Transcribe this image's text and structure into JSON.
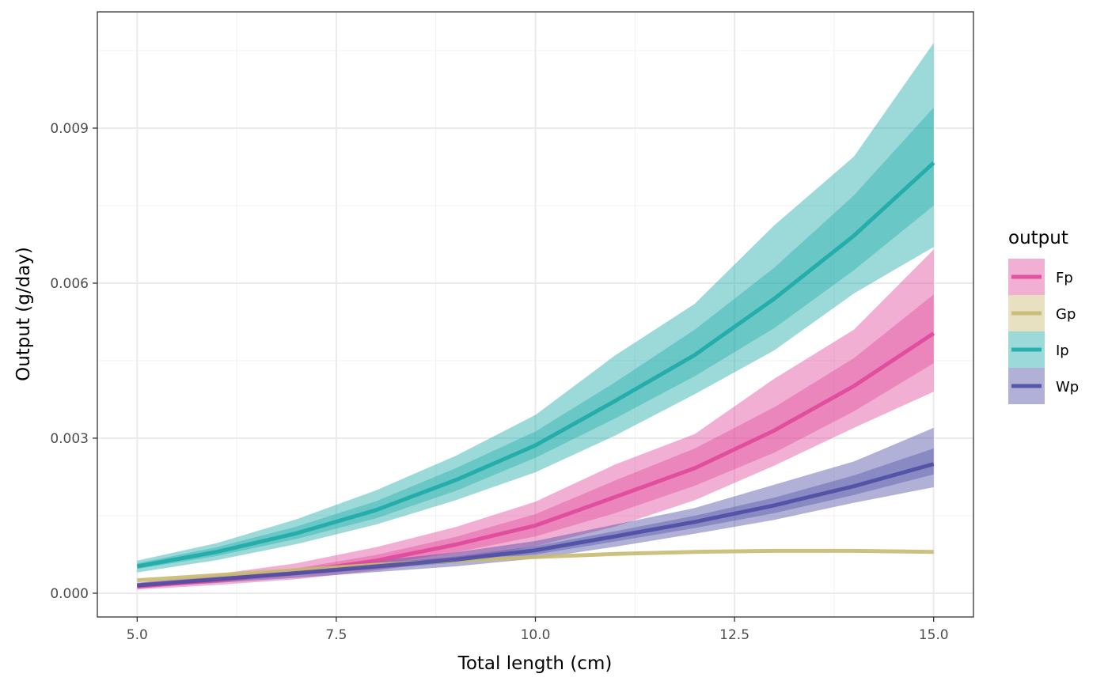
{
  "chart_data": {
    "type": "line",
    "xlabel": "Total length (cm)",
    "ylabel": "Output (g/day)",
    "xlim": [
      4.5,
      15.5
    ],
    "ylim": [
      -0.00046,
      0.01125
    ],
    "x_ticks": [
      5.0,
      7.5,
      10.0,
      12.5,
      15.0
    ],
    "x_tick_labels": [
      "5.0",
      "7.5",
      "10.0",
      "12.5",
      "15.0"
    ],
    "y_ticks": [
      0.0,
      0.003,
      0.006,
      0.009
    ],
    "y_tick_labels": [
      "0.000",
      "0.003",
      "0.006",
      "0.009"
    ],
    "grid": true,
    "legend": {
      "title": "output",
      "position": "right"
    },
    "x": [
      5,
      6,
      7,
      8,
      9,
      10,
      11,
      12,
      13,
      14,
      15
    ],
    "series": [
      {
        "name": "Fp",
        "color": "#E0489A",
        "values": [
          0.00013,
          0.00025,
          0.00041,
          0.00063,
          0.00094,
          0.00131,
          0.00186,
          0.00242,
          0.00315,
          0.00401,
          0.00503
        ],
        "inner_lo": [
          0.00011,
          0.00021,
          0.00035,
          0.00054,
          0.00079,
          0.0011,
          0.00155,
          0.00208,
          0.00272,
          0.00352,
          0.00445
        ],
        "inner_hi": [
          0.00016,
          0.0003,
          0.00048,
          0.00074,
          0.00109,
          0.00153,
          0.00218,
          0.0028,
          0.0036,
          0.00455,
          0.00578
        ],
        "outer_lo": [
          7e-05,
          0.00016,
          0.00027,
          0.00044,
          0.00064,
          0.00091,
          0.00129,
          0.0018,
          0.00247,
          0.0032,
          0.0039
        ],
        "outer_hi": [
          0.0002,
          0.00037,
          0.00058,
          0.00089,
          0.00128,
          0.00177,
          0.00249,
          0.00308,
          0.00415,
          0.0051,
          0.00665
        ]
      },
      {
        "name": "Gp",
        "color": "#C8BA72",
        "values": [
          0.00025,
          0.00035,
          0.00045,
          0.00055,
          0.00063,
          0.0007,
          0.00076,
          0.0008,
          0.00082,
          0.00082,
          0.0008
        ]
      },
      {
        "name": "Ip",
        "color": "#1EAAA8",
        "values": [
          0.00052,
          0.0008,
          0.00116,
          0.00161,
          0.00219,
          0.00286,
          0.00372,
          0.00461,
          0.0057,
          0.00692,
          0.00833
        ],
        "inner_lo": [
          0.00047,
          0.00072,
          0.00105,
          0.00145,
          0.00198,
          0.00262,
          0.00338,
          0.0042,
          0.00513,
          0.00625,
          0.0075
        ],
        "inner_hi": [
          0.00058,
          0.00089,
          0.00129,
          0.00178,
          0.00242,
          0.00313,
          0.00408,
          0.0051,
          0.0063,
          0.0077,
          0.0094
        ],
        "outer_lo": [
          0.0004,
          0.00064,
          0.00095,
          0.00133,
          0.0018,
          0.00234,
          0.00305,
          0.00385,
          0.0047,
          0.0058,
          0.0067
        ],
        "outer_hi": [
          0.00063,
          0.00097,
          0.00143,
          0.00199,
          0.00266,
          0.00345,
          0.0046,
          0.0056,
          0.00712,
          0.00845,
          0.01065
        ]
      },
      {
        "name": "Wp",
        "color": "#4E4EA5",
        "values": [
          0.00015,
          0.00027,
          0.00039,
          0.00052,
          0.00065,
          0.00083,
          0.0011,
          0.00138,
          0.0017,
          0.00207,
          0.0025
        ],
        "inner_lo": [
          0.00013,
          0.00024,
          0.00035,
          0.00047,
          0.00059,
          0.00075,
          0.001,
          0.00126,
          0.00155,
          0.0019,
          0.0023
        ],
        "inner_hi": [
          0.00017,
          0.0003,
          0.00043,
          0.00057,
          0.00071,
          0.00091,
          0.0012,
          0.0015,
          0.00185,
          0.00228,
          0.0028
        ],
        "outer_lo": [
          0.00011,
          0.0002,
          0.0003,
          0.00041,
          0.00052,
          0.00067,
          0.0009,
          0.00115,
          0.00142,
          0.00175,
          0.00205
        ],
        "outer_hi": [
          0.0002,
          0.00033,
          0.00048,
          0.00063,
          0.00079,
          0.00101,
          0.00133,
          0.00165,
          0.0021,
          0.00255,
          0.0032
        ]
      }
    ]
  }
}
